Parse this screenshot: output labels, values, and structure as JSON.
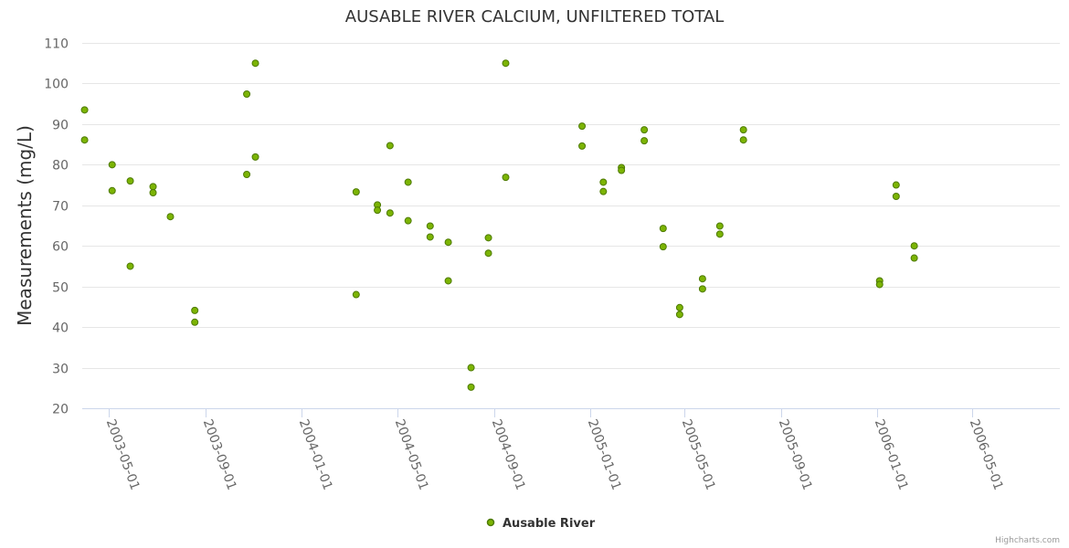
{
  "chart_data": {
    "type": "scatter",
    "title": "AUSABLE RIVER CALCIUM, UNFILTERED TOTAL",
    "xlabel": "",
    "ylabel": "Measurements (mg/L)",
    "ylim": [
      20,
      110
    ],
    "yticks": [
      20,
      30,
      40,
      50,
      60,
      70,
      80,
      90,
      100,
      110
    ],
    "xlim": [
      "2003-03-28",
      "2006-08-21"
    ],
    "xticks": [
      "2003-05-01",
      "2003-09-01",
      "2004-01-01",
      "2004-05-01",
      "2004-09-01",
      "2005-01-01",
      "2005-05-01",
      "2005-09-01",
      "2006-01-01",
      "2006-05-01"
    ],
    "legend": "bottom-center",
    "credits": "Highcharts.com",
    "color": "#7cb404",
    "series": [
      {
        "name": "Ausable River",
        "points": [
          {
            "x": "2003-03-31",
            "y": 93.5
          },
          {
            "x": "2003-03-31",
            "y": 86.1
          },
          {
            "x": "2003-05-05",
            "y": 80.0
          },
          {
            "x": "2003-05-05",
            "y": 73.6
          },
          {
            "x": "2003-05-28",
            "y": 76.0
          },
          {
            "x": "2003-05-28",
            "y": 55.0
          },
          {
            "x": "2003-06-26",
            "y": 74.6
          },
          {
            "x": "2003-06-26",
            "y": 73.1
          },
          {
            "x": "2003-07-18",
            "y": 67.2
          },
          {
            "x": "2003-08-18",
            "y": 44.1
          },
          {
            "x": "2003-08-18",
            "y": 41.2
          },
          {
            "x": "2003-10-23",
            "y": 97.4
          },
          {
            "x": "2003-10-23",
            "y": 77.6
          },
          {
            "x": "2003-11-03",
            "y": 105.0
          },
          {
            "x": "2003-11-03",
            "y": 81.9
          },
          {
            "x": "2004-03-10",
            "y": 73.3
          },
          {
            "x": "2004-03-10",
            "y": 48.0
          },
          {
            "x": "2004-04-06",
            "y": 70.1
          },
          {
            "x": "2004-04-06",
            "y": 68.8
          },
          {
            "x": "2004-04-22",
            "y": 84.7
          },
          {
            "x": "2004-04-22",
            "y": 68.1
          },
          {
            "x": "2004-05-15",
            "y": 75.7
          },
          {
            "x": "2004-05-15",
            "y": 66.2
          },
          {
            "x": "2004-06-12",
            "y": 64.9
          },
          {
            "x": "2004-06-12",
            "y": 62.2
          },
          {
            "x": "2004-07-05",
            "y": 60.9
          },
          {
            "x": "2004-07-05",
            "y": 51.4
          },
          {
            "x": "2004-08-03",
            "y": 30.0
          },
          {
            "x": "2004-08-03",
            "y": 25.2
          },
          {
            "x": "2004-08-25",
            "y": 62.0
          },
          {
            "x": "2004-08-25",
            "y": 58.2
          },
          {
            "x": "2004-09-16",
            "y": 105.0
          },
          {
            "x": "2004-09-16",
            "y": 76.9
          },
          {
            "x": "2004-12-22",
            "y": 89.5
          },
          {
            "x": "2004-12-22",
            "y": 84.6
          },
          {
            "x": "2005-01-18",
            "y": 75.7
          },
          {
            "x": "2005-01-18",
            "y": 73.4
          },
          {
            "x": "2005-02-10",
            "y": 79.3
          },
          {
            "x": "2005-02-10",
            "y": 78.6
          },
          {
            "x": "2005-03-11",
            "y": 88.6
          },
          {
            "x": "2005-03-11",
            "y": 85.9
          },
          {
            "x": "2005-04-04",
            "y": 64.3
          },
          {
            "x": "2005-04-04",
            "y": 59.8
          },
          {
            "x": "2005-04-25",
            "y": 44.8
          },
          {
            "x": "2005-04-25",
            "y": 43.1
          },
          {
            "x": "2005-05-24",
            "y": 51.9
          },
          {
            "x": "2005-05-24",
            "y": 49.4
          },
          {
            "x": "2005-06-15",
            "y": 64.9
          },
          {
            "x": "2005-06-15",
            "y": 62.9
          },
          {
            "x": "2005-07-15",
            "y": 88.6
          },
          {
            "x": "2005-07-15",
            "y": 86.1
          },
          {
            "x": "2006-01-04",
            "y": 51.4
          },
          {
            "x": "2006-01-04",
            "y": 50.5
          },
          {
            "x": "2006-01-25",
            "y": 75.0
          },
          {
            "x": "2006-01-25",
            "y": 72.2
          },
          {
            "x": "2006-02-17",
            "y": 60.0
          },
          {
            "x": "2006-02-17",
            "y": 57.0
          }
        ]
      }
    ]
  }
}
